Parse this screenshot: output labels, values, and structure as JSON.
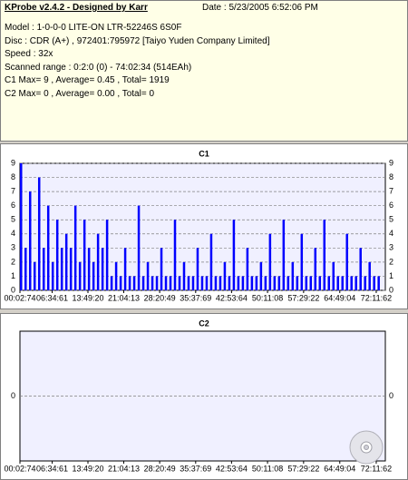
{
  "info": {
    "title": "KProbe v2.4.2 - Designed by Karr",
    "date": "Date : 5/23/2005 6:52:06 PM",
    "lines": [
      "Model : 1-0-0-0 LITE-ON LTR-52246S      6S0F",
      "Disc : CDR (A+) , 972401:795972 [Taiyo Yuden Company Limited]",
      "Speed : 32x",
      "Scanned range : 0:2:0 (0) - 74:02:34 (514EAh)",
      "C1 Max= 9 , Average= 0.45 , Total= 1919",
      "C2 Max= 0 , Average= 0.00 , Total= 0"
    ]
  },
  "chart_data": [
    {
      "type": "bar",
      "title": "C1",
      "color": "#0000ff",
      "grid": true,
      "xlim": [
        2.99,
        4442.45
      ],
      "ylim": [
        0,
        9
      ],
      "yticks": [
        0,
        1,
        2,
        3,
        4,
        5,
        6,
        7,
        8,
        9
      ],
      "xticks": [
        {
          "value": 2.99,
          "label": "00:02:74"
        },
        {
          "value": 394.81,
          "label": "06:34:61"
        },
        {
          "value": 829.27,
          "label": "13:49:20"
        },
        {
          "value": 1264.17,
          "label": "21:04:13"
        },
        {
          "value": 1700.65,
          "label": "28:20:49"
        },
        {
          "value": 2137.92,
          "label": "35:37:69"
        },
        {
          "value": 2573.85,
          "label": "42:53:64"
        },
        {
          "value": 3011.11,
          "label": "50:11:08"
        },
        {
          "value": 3449.29,
          "label": "57:29:22"
        },
        {
          "value": 3889.05,
          "label": "64:49:04"
        },
        {
          "value": 4331.83,
          "label": "72:11:62"
        }
      ],
      "x": [
        3,
        58,
        113,
        168,
        223,
        278,
        333,
        388,
        443,
        498,
        553,
        608,
        663,
        718,
        773,
        828,
        883,
        938,
        993,
        1048,
        1103,
        1158,
        1213,
        1268,
        1323,
        1378,
        1433,
        1488,
        1543,
        1598,
        1653,
        1708,
        1763,
        1818,
        1873,
        1928,
        1983,
        2038,
        2093,
        2148,
        2203,
        2258,
        2313,
        2368,
        2423,
        2478,
        2533,
        2588,
        2643,
        2698,
        2753,
        2808,
        2863,
        2918,
        2973,
        3028,
        3083,
        3138,
        3193,
        3248,
        3303,
        3358,
        3413,
        3468,
        3523,
        3578,
        3633,
        3688,
        3743,
        3798,
        3853,
        3908,
        3963,
        4018,
        4073,
        4128,
        4183,
        4238,
        4293,
        4348
      ],
      "values": [
        9,
        3,
        7,
        2,
        8,
        3,
        6,
        2,
        5,
        3,
        4,
        3,
        6,
        2,
        5,
        3,
        2,
        4,
        3,
        5,
        1,
        2,
        1,
        3,
        1,
        1,
        6,
        1,
        2,
        1,
        1,
        3,
        1,
        1,
        5,
        1,
        2,
        1,
        1,
        3,
        1,
        1,
        4,
        1,
        1,
        2,
        1,
        5,
        1,
        1,
        3,
        1,
        1,
        2,
        1,
        4,
        1,
        1,
        5,
        1,
        2,
        1,
        4,
        1,
        1,
        3,
        1,
        5,
        1,
        2,
        1,
        1,
        4,
        1,
        1,
        3,
        1,
        2,
        1,
        1
      ]
    },
    {
      "type": "bar",
      "title": "C2",
      "color": "#0000ff",
      "grid": true,
      "xlim": [
        2.99,
        4442.45
      ],
      "ylim": [
        -1,
        1
      ],
      "yticks": [
        0
      ],
      "xticks": [
        {
          "value": 2.99,
          "label": "00:02:74"
        },
        {
          "value": 394.81,
          "label": "06:34:61"
        },
        {
          "value": 829.27,
          "label": "13:49:20"
        },
        {
          "value": 1264.17,
          "label": "21:04:13"
        },
        {
          "value": 1700.65,
          "label": "28:20:49"
        },
        {
          "value": 2137.92,
          "label": "35:37:69"
        },
        {
          "value": 2573.85,
          "label": "42:53:64"
        },
        {
          "value": 3011.11,
          "label": "50:11:08"
        },
        {
          "value": 3449.29,
          "label": "57:29:22"
        },
        {
          "value": 3889.05,
          "label": "64:49:04"
        },
        {
          "value": 4331.83,
          "label": "72:11:62"
        }
      ]
    }
  ]
}
